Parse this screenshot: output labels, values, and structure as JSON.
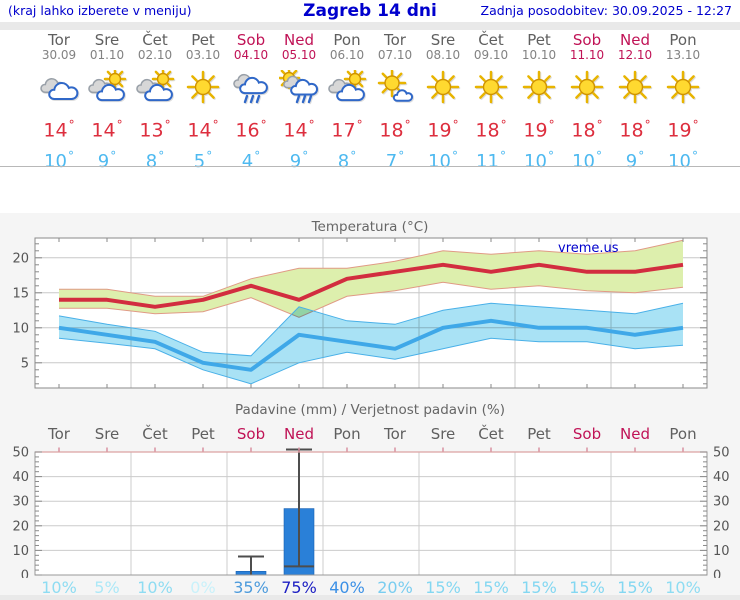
{
  "header": {
    "left_note": "(kraj lahko izberete v meniju)",
    "title": "Zagreb 14 dni",
    "updated": "Zadnja posodobitev: 30.09.2025 - 12:27"
  },
  "degree_symbol": "°",
  "colors": {
    "link_blue": "#0000cd",
    "weekday": "#5f5f5f",
    "weekend": "#c01356",
    "high_temp": "#dd2e3e",
    "low_temp": "#4db9f0",
    "bar_blue": "#2a80d8"
  },
  "days": [
    {
      "name": "Tor",
      "date": "30.09",
      "weekend": false,
      "icon": "cloudy",
      "high": "14",
      "low": "10"
    },
    {
      "name": "Sre",
      "date": "01.10",
      "weekend": false,
      "icon": "partly-cloudy",
      "high": "14",
      "low": "9"
    },
    {
      "name": "Čet",
      "date": "02.10",
      "weekend": false,
      "icon": "partly-cloudy",
      "high": "13",
      "low": "8"
    },
    {
      "name": "Pet",
      "date": "03.10",
      "weekend": false,
      "icon": "sunny",
      "high": "14",
      "low": "5"
    },
    {
      "name": "Sob",
      "date": "04.10",
      "weekend": true,
      "icon": "rain",
      "high": "16",
      "low": "4"
    },
    {
      "name": "Ned",
      "date": "05.10",
      "weekend": true,
      "icon": "sun-rain",
      "high": "14",
      "low": "9"
    },
    {
      "name": "Pon",
      "date": "06.10",
      "weekend": false,
      "icon": "partly-cloudy",
      "high": "17",
      "low": "8"
    },
    {
      "name": "Tor",
      "date": "07.10",
      "weekend": false,
      "icon": "mostly-sunny",
      "high": "18",
      "low": "7"
    },
    {
      "name": "Sre",
      "date": "08.10",
      "weekend": false,
      "icon": "sunny",
      "high": "19",
      "low": "10"
    },
    {
      "name": "Čet",
      "date": "09.10",
      "weekend": false,
      "icon": "sunny",
      "high": "18",
      "low": "11"
    },
    {
      "name": "Pet",
      "date": "10.10",
      "weekend": false,
      "icon": "sunny",
      "high": "19",
      "low": "10"
    },
    {
      "name": "Sob",
      "date": "11.10",
      "weekend": true,
      "icon": "sunny",
      "high": "18",
      "low": "10"
    },
    {
      "name": "Ned",
      "date": "12.10",
      "weekend": true,
      "icon": "sunny",
      "high": "18",
      "low": "9"
    },
    {
      "name": "Pon",
      "date": "13.10",
      "weekend": false,
      "icon": "sunny",
      "high": "19",
      "low": "10"
    }
  ],
  "chart_data": [
    {
      "type": "line",
      "title": "Temperatura (°C)",
      "watermark": "vreme.us",
      "categories": [
        "Tor 30.09",
        "Sre 01.10",
        "Čet 02.10",
        "Pet 03.10",
        "Sob 04.10",
        "Ned 05.10",
        "Pon 06.10",
        "Tor 07.10",
        "Sre 08.10",
        "Čet 09.10",
        "Pet 10.10",
        "Sob 11.10",
        "Ned 12.10",
        "Pon 13.10"
      ],
      "yticks": [
        5,
        10,
        15,
        20
      ],
      "ylim": [
        1.4,
        22.9
      ],
      "grid": true,
      "legend": "none",
      "series": [
        {
          "name": "max temperature",
          "color": "#d22d3f",
          "values": [
            14,
            14,
            13,
            14,
            16,
            14,
            17,
            18,
            19,
            18,
            19,
            18,
            18,
            19
          ]
        },
        {
          "name": "min temperature",
          "color": "#3fa8e8",
          "values": [
            10,
            9,
            8,
            5,
            4,
            9,
            8,
            7,
            10,
            11,
            10,
            10,
            9,
            10
          ]
        }
      ],
      "bands": [
        {
          "name": "max temperature range",
          "fill": "#ddefad",
          "edge": "#e09a85",
          "upper": [
            15.5,
            15.5,
            14.5,
            14.5,
            17,
            18.5,
            18.5,
            19.5,
            21,
            20.5,
            21,
            20.5,
            21,
            22.5
          ],
          "lower": [
            12.8,
            12.8,
            12,
            12.3,
            14.3,
            11.5,
            14.5,
            15.3,
            16.5,
            15.5,
            16,
            15.3,
            15,
            15.8
          ]
        },
        {
          "name": "min temperature range",
          "fill": "#a9e2f5",
          "edge": "#49b0e8",
          "upper": [
            11.7,
            10.5,
            9.5,
            6.5,
            6,
            13,
            11,
            10.5,
            12.5,
            13.5,
            13,
            12.5,
            12,
            13.5
          ],
          "lower": [
            8.5,
            7.8,
            7,
            4,
            2,
            5,
            6.5,
            5.5,
            7,
            8.5,
            8,
            8,
            7,
            7.5
          ]
        }
      ]
    },
    {
      "type": "bar",
      "title": "Padavine (mm) / Verjetnost padavin (%)",
      "categories": [
        "Tor",
        "Sre",
        "Čet",
        "Pet",
        "Sob",
        "Ned",
        "Pon",
        "Tor",
        "Sre",
        "Čet",
        "Pet",
        "Sob",
        "Ned",
        "Pon"
      ],
      "yticks": [
        0,
        10,
        20,
        30,
        40,
        50
      ],
      "ylim": [
        0,
        50
      ],
      "bar_color": "#2a80d8",
      "whisker_color": "#4d4d4d",
      "values": [
        0,
        0,
        0,
        0,
        1.5,
        27,
        0,
        0,
        0,
        0,
        0,
        0,
        0,
        0
      ],
      "error_bars": [
        null,
        null,
        null,
        null,
        [
          0,
          7.5
        ],
        [
          3.5,
          51
        ],
        null,
        null,
        null,
        null,
        null,
        null,
        null,
        null
      ],
      "probabilities": [
        {
          "label": "10%",
          "color": "#8edcf2"
        },
        {
          "label": "5%",
          "color": "#ace8f7"
        },
        {
          "label": "10%",
          "color": "#8edcf2"
        },
        {
          "label": "0%",
          "color": "#c9f1fa"
        },
        {
          "label": "35%",
          "color": "#4d9bdc"
        },
        {
          "label": "75%",
          "color": "#1e20c3"
        },
        {
          "label": "40%",
          "color": "#3b90e6"
        },
        {
          "label": "20%",
          "color": "#79cdf0"
        },
        {
          "label": "15%",
          "color": "#83d7f1"
        },
        {
          "label": "15%",
          "color": "#83d7f1"
        },
        {
          "label": "15%",
          "color": "#83d7f1"
        },
        {
          "label": "15%",
          "color": "#83d7f1"
        },
        {
          "label": "15%",
          "color": "#83d7f1"
        },
        {
          "label": "10%",
          "color": "#8edcf2"
        }
      ]
    }
  ]
}
